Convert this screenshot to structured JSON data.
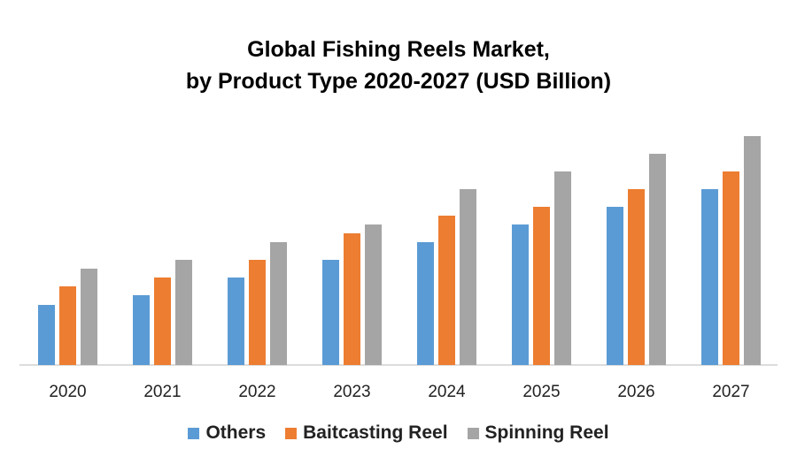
{
  "chart_data": {
    "type": "bar",
    "title_line1": "Global Fishing Reels Market,",
    "title_line2": "by Product Type 2020-2027 (USD Billion)",
    "categories": [
      "2020",
      "2021",
      "2022",
      "2023",
      "2024",
      "2025",
      "2026",
      "2027"
    ],
    "series": [
      {
        "name": "Others",
        "color": "#5B9BD5",
        "values": [
          0.68,
          0.79,
          0.99,
          1.19,
          1.39,
          1.59,
          1.79,
          1.99
        ]
      },
      {
        "name": "Baitcasting Reel",
        "color": "#ED7D31",
        "values": [
          0.89,
          0.99,
          1.19,
          1.49,
          1.69,
          1.79,
          1.99,
          2.19
        ]
      },
      {
        "name": "Spinning Reel",
        "color": "#A5A5A5",
        "values": [
          1.09,
          1.19,
          1.39,
          1.59,
          1.99,
          2.19,
          2.39,
          2.59
        ]
      }
    ],
    "ylim": [
      0,
      2.8
    ],
    "y_axis_shown": false,
    "grid": false,
    "legend_position": "bottom"
  }
}
